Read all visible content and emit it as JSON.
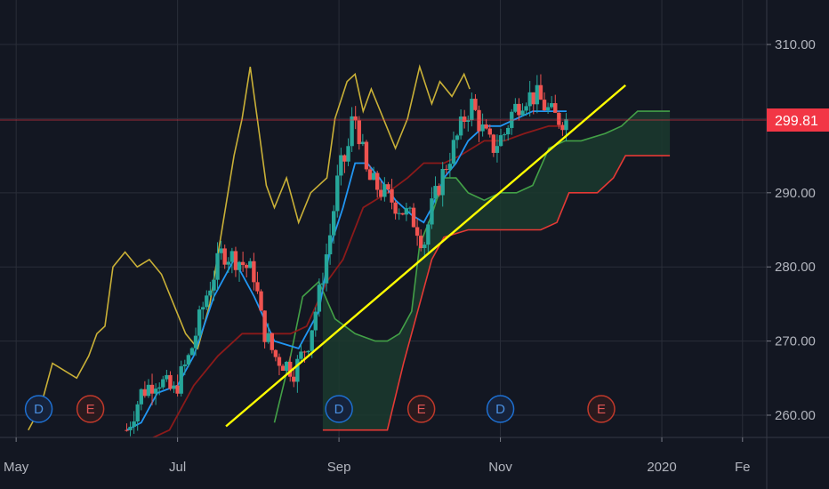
{
  "chart_data": {
    "type": "candlestick",
    "instrument_price": "299.81",
    "colors": {
      "background": "#131722",
      "grid": "#2a2e39",
      "up": "#26a69a",
      "down": "#ef5350",
      "conversion_line": "#2196f3",
      "base_line": "#8b1a1a",
      "lagging_span": "#c9b037",
      "leading_span_a": "#43a047",
      "leading_span_b": "#e53935",
      "cloud_fill": "#1b3a2e",
      "trendline": "#ffff00",
      "price_badge": "#f23645"
    },
    "y_axis": {
      "ticks": [
        {
          "value": 260,
          "label": "260.00"
        },
        {
          "value": 270,
          "label": "270.00"
        },
        {
          "value": 280,
          "label": "280.00"
        },
        {
          "value": 290,
          "label": "290.00"
        },
        {
          "value": 310,
          "label": "310.00"
        }
      ],
      "range": [
        257,
        316
      ]
    },
    "x_axis": {
      "ticks": [
        {
          "month": 0,
          "label": "May"
        },
        {
          "month": 2,
          "label": "Jul"
        },
        {
          "month": 4,
          "label": "Sep"
        },
        {
          "month": 6,
          "label": "Nov"
        },
        {
          "month": 8,
          "label": "2020"
        },
        {
          "month": 9,
          "label": "Fe"
        }
      ],
      "range_months": [
        -0.2,
        9.3
      ]
    },
    "events": [
      {
        "month": 0.28,
        "label": "D",
        "kind": "dividend"
      },
      {
        "month": 0.92,
        "label": "E",
        "kind": "earnings"
      },
      {
        "month": 4.0,
        "label": "D",
        "kind": "dividend"
      },
      {
        "month": 5.02,
        "label": "E",
        "kind": "earnings"
      },
      {
        "month": 6.0,
        "label": "D",
        "kind": "dividend"
      },
      {
        "month": 7.25,
        "label": "E",
        "kind": "earnings"
      }
    ],
    "trendline": {
      "from": {
        "month": 2.6,
        "value": 258.5
      },
      "to": {
        "month": 7.55,
        "value": 304.5
      }
    },
    "price_line_value": 299.81,
    "candle_anchors": [
      [
        1.37,
        258
      ],
      [
        1.55,
        263
      ],
      [
        1.75,
        265
      ],
      [
        1.95,
        263
      ],
      [
        2.15,
        268
      ],
      [
        2.35,
        276
      ],
      [
        2.55,
        282
      ],
      [
        2.75,
        281
      ],
      [
        2.95,
        279
      ],
      [
        3.05,
        272
      ],
      [
        3.2,
        268
      ],
      [
        3.45,
        266
      ],
      [
        3.62,
        270
      ],
      [
        3.75,
        276
      ],
      [
        3.9,
        285
      ],
      [
        4.0,
        293
      ],
      [
        4.1,
        295
      ],
      [
        4.18,
        301
      ],
      [
        4.25,
        298
      ],
      [
        4.35,
        292
      ],
      [
        4.55,
        290
      ],
      [
        4.75,
        288
      ],
      [
        4.95,
        286
      ],
      [
        5.05,
        283
      ],
      [
        5.15,
        288
      ],
      [
        5.3,
        293
      ],
      [
        5.45,
        297
      ],
      [
        5.55,
        300
      ],
      [
        5.65,
        302
      ],
      [
        5.75,
        299
      ],
      [
        5.9,
        296
      ],
      [
        6.05,
        298
      ],
      [
        6.15,
        301
      ],
      [
        6.3,
        303
      ],
      [
        6.45,
        303
      ],
      [
        6.6,
        301
      ],
      [
        6.7,
        300
      ],
      [
        6.82,
        299.8
      ]
    ],
    "conversion_line": [
      [
        1.37,
        258
      ],
      [
        1.55,
        259
      ],
      [
        1.75,
        263
      ],
      [
        2.0,
        264
      ],
      [
        2.2,
        268
      ],
      [
        2.45,
        276
      ],
      [
        2.7,
        281
      ],
      [
        2.95,
        276
      ],
      [
        3.2,
        270
      ],
      [
        3.5,
        269
      ],
      [
        3.75,
        274
      ],
      [
        3.9,
        283
      ],
      [
        4.05,
        288
      ],
      [
        4.2,
        294
      ],
      [
        4.35,
        294
      ],
      [
        4.5,
        292
      ],
      [
        4.7,
        289
      ],
      [
        4.9,
        287
      ],
      [
        5.05,
        286
      ],
      [
        5.15,
        288
      ],
      [
        5.3,
        292
      ],
      [
        5.45,
        294
      ],
      [
        5.6,
        297
      ],
      [
        5.8,
        299
      ],
      [
        6.0,
        299
      ],
      [
        6.2,
        300
      ],
      [
        6.4,
        301
      ],
      [
        6.6,
        301
      ],
      [
        6.82,
        301
      ]
    ],
    "base_line": [
      [
        1.5,
        256
      ],
      [
        1.9,
        258
      ],
      [
        2.2,
        264
      ],
      [
        2.5,
        268
      ],
      [
        2.8,
        271
      ],
      [
        3.1,
        271
      ],
      [
        3.4,
        271
      ],
      [
        3.6,
        272
      ],
      [
        3.85,
        278
      ],
      [
        4.05,
        281
      ],
      [
        4.3,
        288
      ],
      [
        4.6,
        290
      ],
      [
        4.85,
        292
      ],
      [
        5.05,
        294
      ],
      [
        5.3,
        294
      ],
      [
        5.5,
        295
      ],
      [
        5.8,
        297
      ],
      [
        6.05,
        297
      ],
      [
        6.3,
        298
      ],
      [
        6.6,
        299
      ],
      [
        6.82,
        299
      ]
    ],
    "lagging_span": [
      [
        0.15,
        258
      ],
      [
        0.3,
        261
      ],
      [
        0.45,
        267
      ],
      [
        0.6,
        266
      ],
      [
        0.75,
        265
      ],
      [
        0.9,
        268
      ],
      [
        1.0,
        271
      ],
      [
        1.1,
        272
      ],
      [
        1.2,
        280
      ],
      [
        1.35,
        282
      ],
      [
        1.5,
        280
      ],
      [
        1.65,
        281
      ],
      [
        1.8,
        279
      ],
      [
        1.95,
        275
      ],
      [
        2.1,
        271
      ],
      [
        2.25,
        269
      ],
      [
        2.4,
        275
      ],
      [
        2.55,
        285
      ],
      [
        2.7,
        295
      ],
      [
        2.8,
        300
      ],
      [
        2.9,
        307
      ],
      [
        3.0,
        299
      ],
      [
        3.1,
        291
      ],
      [
        3.2,
        288
      ],
      [
        3.35,
        292
      ],
      [
        3.5,
        286
      ],
      [
        3.65,
        290
      ],
      [
        3.85,
        292
      ],
      [
        3.95,
        300
      ],
      [
        4.1,
        305
      ],
      [
        4.2,
        306
      ],
      [
        4.3,
        301
      ],
      [
        4.4,
        304
      ],
      [
        4.55,
        300
      ],
      [
        4.7,
        296
      ],
      [
        4.85,
        300
      ],
      [
        5.0,
        307
      ],
      [
        5.15,
        302
      ],
      [
        5.25,
        305
      ],
      [
        5.4,
        303
      ],
      [
        5.55,
        306
      ],
      [
        5.62,
        304
      ]
    ],
    "leading_span_a": [
      [
        3.2,
        259
      ],
      [
        3.4,
        268
      ],
      [
        3.55,
        276
      ],
      [
        3.75,
        278
      ],
      [
        3.95,
        273
      ],
      [
        4.2,
        271
      ],
      [
        4.45,
        270
      ],
      [
        4.6,
        270
      ],
      [
        4.75,
        271
      ],
      [
        4.9,
        274
      ],
      [
        5.0,
        283
      ],
      [
        5.15,
        287
      ],
      [
        5.3,
        292
      ],
      [
        5.45,
        292
      ],
      [
        5.6,
        290
      ],
      [
        5.8,
        289
      ],
      [
        6.0,
        290
      ],
      [
        6.2,
        290
      ],
      [
        6.4,
        291
      ],
      [
        6.6,
        296
      ],
      [
        6.8,
        297
      ],
      [
        7.0,
        297
      ],
      [
        7.3,
        298
      ],
      [
        7.5,
        299
      ],
      [
        7.6,
        300
      ],
      [
        7.7,
        301
      ],
      [
        7.85,
        301
      ],
      [
        8.0,
        301
      ],
      [
        8.1,
        301
      ]
    ],
    "leading_span_b": [
      [
        3.8,
        258
      ],
      [
        4.2,
        258
      ],
      [
        4.6,
        258
      ],
      [
        4.8,
        267
      ],
      [
        5.0,
        275
      ],
      [
        5.15,
        281
      ],
      [
        5.3,
        284
      ],
      [
        5.6,
        285
      ],
      [
        5.9,
        285
      ],
      [
        6.2,
        285
      ],
      [
        6.5,
        285
      ],
      [
        6.7,
        286
      ],
      [
        6.85,
        290
      ],
      [
        7.2,
        290
      ],
      [
        7.4,
        292
      ],
      [
        7.55,
        295
      ],
      [
        7.8,
        295
      ],
      [
        8.1,
        295
      ]
    ]
  }
}
